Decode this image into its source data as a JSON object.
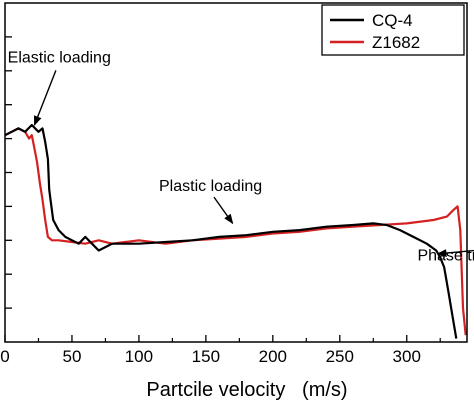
{
  "chart_data": {
    "type": "line",
    "xlabel": "Partcile velocity   (m/s)",
    "ylabel": "",
    "xlim": [
      0,
      345
    ],
    "ylim": [
      0,
      1
    ],
    "y_tick_labels_visible": false,
    "grid": false,
    "legend": "top-right",
    "x_ticks": [
      {
        "value": 0,
        "label": "0"
      },
      {
        "value": 50,
        "label": "50"
      },
      {
        "value": 100,
        "label": "100"
      },
      {
        "value": 150,
        "label": "150"
      },
      {
        "value": 200,
        "label": "200"
      },
      {
        "value": 250,
        "label": "250"
      },
      {
        "value": 300,
        "label": "300"
      }
    ],
    "y_ticks": [
      0.1,
      0.2,
      0.3,
      0.4,
      0.5,
      0.6,
      0.7,
      0.8,
      0.9
    ],
    "series": [
      {
        "name": "CQ-4",
        "color": "#000000",
        "points": [
          [
            0,
            0.61
          ],
          [
            5,
            0.62
          ],
          [
            10,
            0.63
          ],
          [
            15,
            0.62
          ],
          [
            20,
            0.64
          ],
          [
            25,
            0.62
          ],
          [
            28,
            0.63
          ],
          [
            30,
            0.59
          ],
          [
            32,
            0.54
          ],
          [
            33,
            0.45
          ],
          [
            34,
            0.42
          ],
          [
            36,
            0.36
          ],
          [
            40,
            0.33
          ],
          [
            45,
            0.31
          ],
          [
            50,
            0.3
          ],
          [
            55,
            0.29
          ],
          [
            60,
            0.31
          ],
          [
            65,
            0.29
          ],
          [
            70,
            0.27
          ],
          [
            75,
            0.28
          ],
          [
            80,
            0.29
          ],
          [
            90,
            0.29
          ],
          [
            100,
            0.29
          ],
          [
            120,
            0.295
          ],
          [
            140,
            0.3
          ],
          [
            160,
            0.31
          ],
          [
            180,
            0.315
          ],
          [
            200,
            0.325
          ],
          [
            220,
            0.33
          ],
          [
            240,
            0.34
          ],
          [
            260,
            0.345
          ],
          [
            275,
            0.35
          ],
          [
            285,
            0.345
          ],
          [
            295,
            0.33
          ],
          [
            305,
            0.31
          ],
          [
            315,
            0.29
          ],
          [
            322,
            0.27
          ],
          [
            325,
            0.25
          ],
          [
            328,
            0.22
          ],
          [
            331,
            0.15
          ],
          [
            334,
            0.08
          ],
          [
            337,
            0.01
          ]
        ]
      },
      {
        "name": "Z1682",
        "color": "#d42020",
        "points": [
          [
            0,
            0.61
          ],
          [
            5,
            0.62
          ],
          [
            10,
            0.63
          ],
          [
            15,
            0.62
          ],
          [
            18,
            0.6
          ],
          [
            20,
            0.61
          ],
          [
            22,
            0.57
          ],
          [
            24,
            0.53
          ],
          [
            26,
            0.47
          ],
          [
            28,
            0.42
          ],
          [
            30,
            0.36
          ],
          [
            32,
            0.31
          ],
          [
            35,
            0.3
          ],
          [
            40,
            0.3
          ],
          [
            50,
            0.295
          ],
          [
            60,
            0.29
          ],
          [
            70,
            0.3
          ],
          [
            80,
            0.29
          ],
          [
            90,
            0.295
          ],
          [
            100,
            0.3
          ],
          [
            120,
            0.29
          ],
          [
            140,
            0.3
          ],
          [
            160,
            0.305
          ],
          [
            180,
            0.31
          ],
          [
            200,
            0.32
          ],
          [
            220,
            0.325
          ],
          [
            240,
            0.335
          ],
          [
            260,
            0.34
          ],
          [
            280,
            0.345
          ],
          [
            300,
            0.35
          ],
          [
            320,
            0.36
          ],
          [
            330,
            0.37
          ],
          [
            335,
            0.39
          ],
          [
            338,
            0.4
          ],
          [
            340,
            0.33
          ],
          [
            342,
            0.1
          ],
          [
            344,
            0.02
          ]
        ]
      }
    ],
    "annotations": [
      {
        "text": "Elastic loading",
        "x": 2,
        "y": 0.825,
        "arrow_to": [
          22,
          0.64
        ]
      },
      {
        "text": "Plastic loading",
        "x": 115,
        "y": 0.445,
        "arrow_to": [
          170,
          0.35
        ]
      },
      {
        "text": "Phase transition",
        "x": 308,
        "y": 0.24,
        "arrow_to": [
          323,
          0.26
        ]
      }
    ],
    "colors": {
      "axis": "#000000",
      "cq4": "#000000",
      "z1682": "#d42020"
    }
  }
}
